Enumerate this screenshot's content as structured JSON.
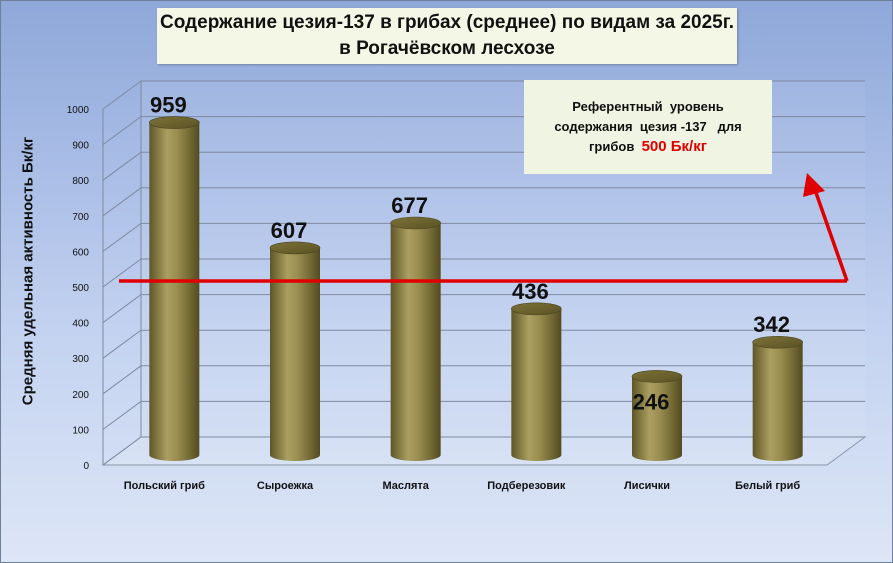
{
  "title_line1": "Содержание цезия-137 в грибах (среднее) по видам за 2025г.",
  "title_line2": "в Рогачёвском лесхозе",
  "reference_box": {
    "line1": "Референтный  уровень",
    "line2": "содержания  цезия -137   для",
    "line3_prefix": "грибов  ",
    "line3_value": "500 Бк/кг"
  },
  "colors": {
    "bar": "#8f8546",
    "reference_line": "#e00000"
  },
  "chart_data": {
    "type": "bar",
    "title": "Содержание цезия-137 в грибах (среднее) по видам за 2025г. в Рогачёвском лесхозе",
    "xlabel": "",
    "ylabel": "Средняя удельная активность  Бк/кг",
    "categories": [
      "Польский  гриб",
      "Сыроежка",
      "Маслята",
      "Подберезовик",
      "Лисички",
      "Белый гриб"
    ],
    "values": [
      959,
      607,
      677,
      436,
      246,
      342
    ],
    "data_labels": [
      "959",
      "607",
      "677",
      "436",
      "246",
      "342"
    ],
    "ylim": [
      0,
      1000
    ],
    "yticks": [
      "0",
      "100",
      "200",
      "300",
      "400",
      "500",
      "600",
      "700",
      "800",
      "900",
      "1000"
    ],
    "reference_value": 500,
    "grid": true,
    "legend": "none"
  }
}
